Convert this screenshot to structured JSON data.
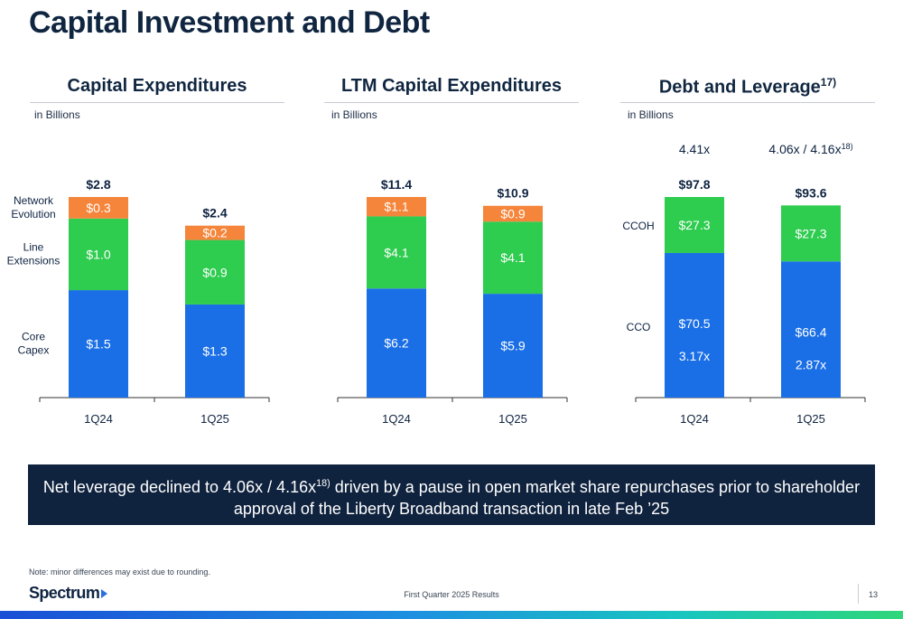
{
  "page": {
    "title": "Capital Investment and Debt",
    "page_number": "13",
    "footer_center": "First Quarter 2025 Results",
    "logo_text": "Spectrum",
    "footnote": "Note: minor differences may exist due to rounding."
  },
  "panels": {
    "capex": {
      "title": "Capital Expenditures",
      "unit": "in Billions"
    },
    "ltm": {
      "title": "LTM Capital Expenditures",
      "unit": "in Billions"
    },
    "debt": {
      "title": "Debt and Leverage",
      "title_sup": "17)",
      "unit": "in Billions"
    }
  },
  "callout": {
    "text_before": "Net leverage declined to 4.06x / 4.16x",
    "sup": "18)",
    "text_after": " driven by a pause in open market share repurchases prior to shareholder approval of the Liberty Broadband transaction in late Feb ’25"
  },
  "colors": {
    "blue": "#1a6fe6",
    "green": "#2ecc4f",
    "orange": "#f5853a",
    "navy": "#0f223e"
  },
  "chart_data": [
    {
      "type": "bar",
      "title": "Capital Expenditures",
      "ylabel": "in Billions",
      "stacked": true,
      "categories": [
        "1Q24",
        "1Q25"
      ],
      "ylim": [
        0,
        2.8
      ],
      "series": [
        {
          "name": "Core Capex",
          "color": "#1a6fe6",
          "values": [
            1.5,
            1.3
          ],
          "labels": [
            "$1.5",
            "$1.3"
          ]
        },
        {
          "name": "Line Extensions",
          "color": "#2ecc4f",
          "values": [
            1.0,
            0.9
          ],
          "labels": [
            "$1.0",
            "$0.9"
          ]
        },
        {
          "name": "Network Evolution",
          "color": "#f5853a",
          "values": [
            0.3,
            0.2
          ],
          "labels": [
            "$0.3",
            "$0.2"
          ]
        }
      ],
      "totals": [
        "$2.8",
        "$2.4"
      ],
      "series_label_lines": [
        [
          "Core",
          "Capex"
        ],
        [
          "Line",
          "Extensions"
        ],
        [
          "Network",
          "Evolution"
        ]
      ]
    },
    {
      "type": "bar",
      "title": "LTM Capital Expenditures",
      "ylabel": "in Billions",
      "stacked": true,
      "categories": [
        "1Q24",
        "1Q25"
      ],
      "ylim": [
        0,
        11.4
      ],
      "series": [
        {
          "name": "",
          "color": "#1a6fe6",
          "values": [
            6.2,
            5.9
          ],
          "labels": [
            "$6.2",
            "$5.9"
          ]
        },
        {
          "name": "",
          "color": "#2ecc4f",
          "values": [
            4.1,
            4.1
          ],
          "labels": [
            "$4.1",
            "$4.1"
          ]
        },
        {
          "name": "",
          "color": "#f5853a",
          "values": [
            1.1,
            0.9
          ],
          "labels": [
            "$1.1",
            "$0.9"
          ]
        }
      ],
      "totals": [
        "$11.4",
        "$10.9"
      ]
    },
    {
      "type": "bar",
      "title": "Debt and Leverage",
      "ylabel": "in Billions",
      "stacked": true,
      "categories": [
        "1Q24",
        "1Q25"
      ],
      "ylim": [
        0,
        97.8
      ],
      "series": [
        {
          "name": "CCO",
          "color": "#1a6fe6",
          "values": [
            70.5,
            66.4
          ],
          "labels": [
            "$70.5",
            "$66.4"
          ],
          "sublabels": [
            "3.17x",
            "2.87x"
          ]
        },
        {
          "name": "CCOH",
          "color": "#2ecc4f",
          "values": [
            27.3,
            27.3
          ],
          "labels": [
            "$27.3",
            "$27.3"
          ]
        }
      ],
      "totals": [
        "$97.8",
        "$93.6"
      ],
      "leverage": [
        {
          "text": "4.41x",
          "sup": ""
        },
        {
          "text": "4.06x / 4.16x",
          "sup": "18)"
        }
      ]
    }
  ]
}
